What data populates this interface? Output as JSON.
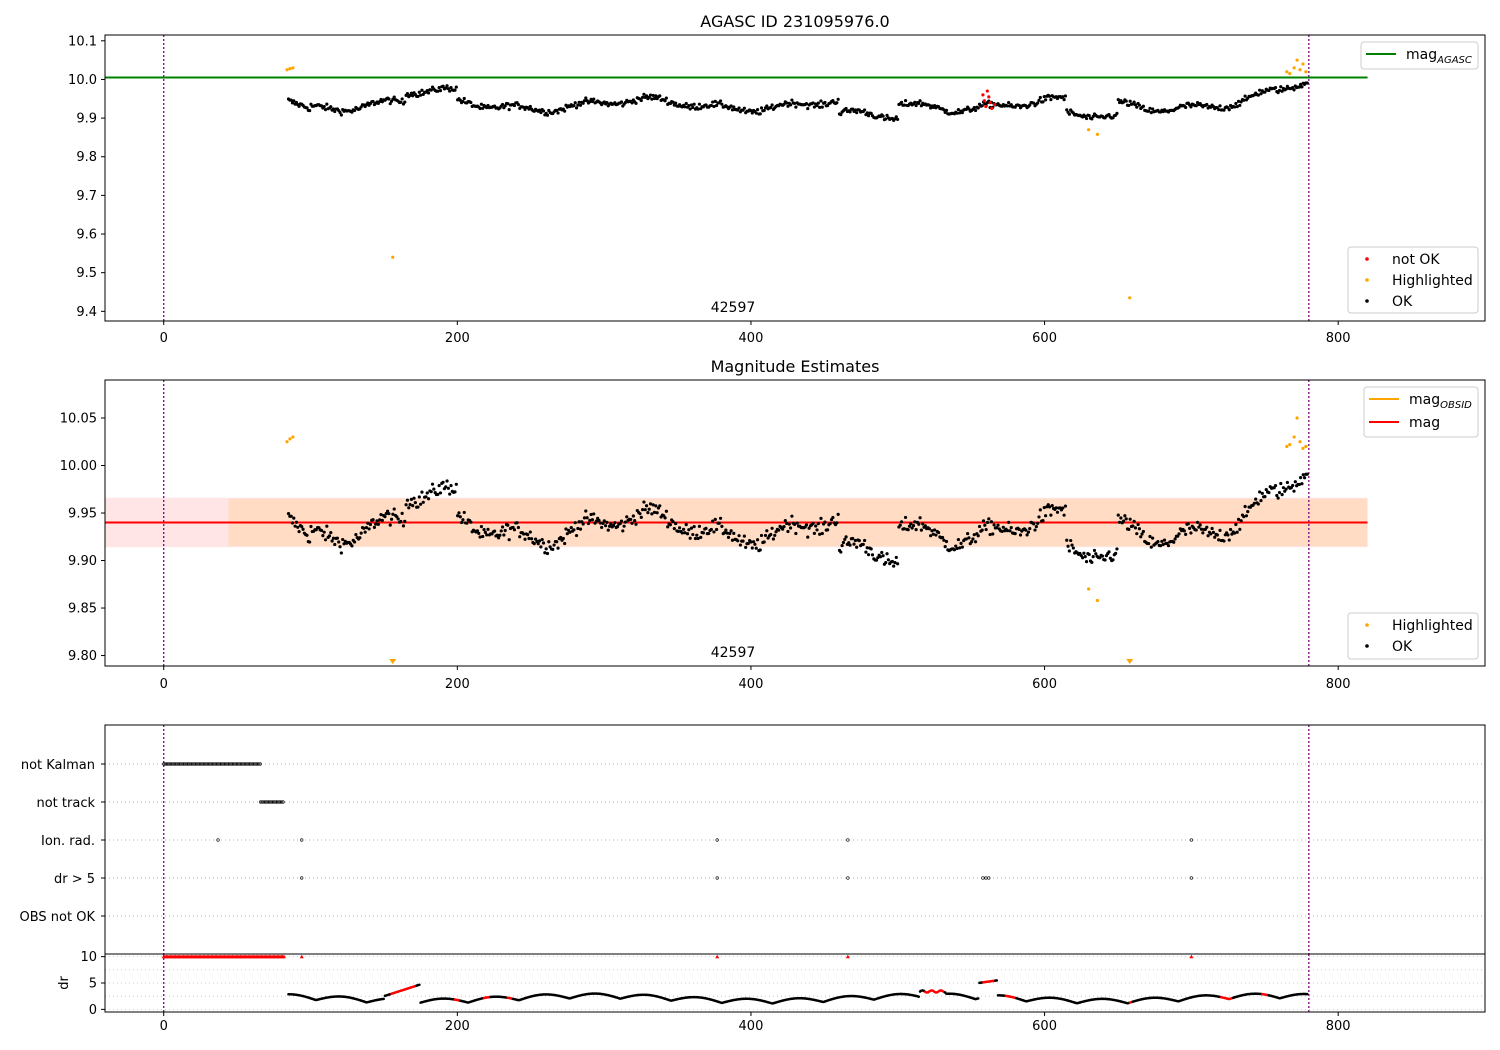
{
  "chart_data": [
    {
      "type": "scatter",
      "title": "AGASC ID 231095976.0",
      "xlim": [
        -40,
        900
      ],
      "ylim": [
        9.375,
        10.115
      ],
      "xticks": [
        0,
        200,
        400,
        600,
        800
      ],
      "yticks": [
        "9.4",
        "9.5",
        "9.6",
        "9.7",
        "9.8",
        "9.9",
        "10.0",
        "10.1"
      ],
      "obsid_label": "42597",
      "obsid_label_x": 390,
      "obsid_bounds": [
        0,
        780
      ],
      "mag_agasc": 10.005,
      "mag_agasc_x_range": [
        -40,
        820
      ],
      "legend_line": {
        "label": "mag",
        "sub": "AGASC",
        "color": "#008000"
      },
      "legend_points": [
        {
          "label": "not OK",
          "color": "#ff0000"
        },
        {
          "label": "Highlighted",
          "color": "#ffa500"
        },
        {
          "label": "OK",
          "color": "#000000"
        }
      ],
      "series": [
        {
          "name": "not OK",
          "color": "#ff0000",
          "points": [
            [
              558,
              9.96
            ],
            [
              559,
              9.945
            ],
            [
              560,
              9.93
            ],
            [
              561,
              9.97
            ],
            [
              562,
              9.955
            ],
            [
              563,
              9.94
            ],
            [
              564,
              9.925
            ],
            [
              566,
              9.935
            ]
          ]
        },
        {
          "name": "Highlighted",
          "color": "#ffa500",
          "points": [
            [
              84,
              10.025
            ],
            [
              86,
              10.028
            ],
            [
              88,
              10.03
            ],
            [
              156,
              9.54
            ],
            [
              630,
              9.87
            ],
            [
              636,
              9.858
            ],
            [
              658,
              9.435
            ],
            [
              765,
              10.02
            ],
            [
              767,
              10.015
            ],
            [
              770,
              10.03
            ],
            [
              772,
              10.05
            ],
            [
              774,
              10.025
            ],
            [
              776,
              10.04
            ],
            [
              778,
              10.02
            ]
          ]
        }
      ]
    },
    {
      "type": "scatter",
      "title": "Magnitude Estimates",
      "xlim": [
        -40,
        900
      ],
      "ylim": [
        9.789,
        10.09
      ],
      "xticks": [
        0,
        200,
        400,
        600,
        800
      ],
      "yticks": [
        "9.80",
        "9.85",
        "9.90",
        "9.95",
        "10.00",
        "10.05"
      ],
      "obsid_label": "42597",
      "obsid_label_x": 390,
      "obsid_bounds": [
        0,
        780
      ],
      "mag_obsid": 9.94,
      "mag_obsid_band": [
        9.915,
        9.965
      ],
      "mag_obsid_x_range": [
        85,
        780
      ],
      "mag": 9.94,
      "mag_band": [
        9.914,
        9.966
      ],
      "mag_x_range": [
        -40,
        820
      ],
      "legend_lines": [
        {
          "label": "mag",
          "sub": "OBSID",
          "color": "#ffa500"
        },
        {
          "label": "mag",
          "sub": "",
          "color": "#ff0000"
        }
      ],
      "legend_points": [
        {
          "label": "Highlighted",
          "color": "#ffa500"
        },
        {
          "label": "OK",
          "color": "#000000"
        }
      ],
      "series": [
        {
          "name": "Highlighted",
          "color": "#ffa500",
          "points": [
            [
              84,
              10.025
            ],
            [
              86,
              10.028
            ],
            [
              88,
              10.03
            ],
            [
              630,
              9.87
            ],
            [
              636,
              9.858
            ],
            [
              765,
              10.02
            ],
            [
              767,
              10.022
            ],
            [
              770,
              10.03
            ],
            [
              772,
              10.05
            ],
            [
              774,
              10.025
            ],
            [
              776,
              10.018
            ],
            [
              778,
              10.02
            ]
          ]
        }
      ],
      "lower_limit_markers": [
        156,
        658
      ]
    },
    {
      "type": "scatter",
      "xlim": [
        -40,
        900
      ],
      "categories": [
        "not Kalman",
        "not track",
        "Ion. rad.",
        "dr > 5",
        "OBS not OK"
      ],
      "flag_points": [
        {
          "category": "not Kalman",
          "x_range": [
            0,
            66
          ]
        },
        {
          "category": "not track",
          "x_range": [
            66,
            82
          ]
        },
        {
          "category": "Ion. rad.",
          "x": [
            37,
            94,
            377,
            466,
            700
          ]
        },
        {
          "category": "dr > 5",
          "x": [
            94,
            377,
            466,
            558,
            560,
            562,
            700
          ]
        }
      ],
      "obsid_bounds": [
        0,
        780
      ]
    },
    {
      "type": "scatter",
      "ylabel": "dr",
      "xlim": [
        -40,
        900
      ],
      "ylim": [
        -0.5,
        10.5
      ],
      "xticks": [
        0,
        200,
        400,
        600,
        800
      ],
      "yticks": [
        "0",
        "5",
        "10"
      ],
      "obsid_bounds": [
        0,
        780
      ],
      "capped_markers": {
        "value": 10,
        "x_range": [
          0,
          82
        ],
        "x": [
          94,
          377,
          466,
          700
        ]
      },
      "red_segments": [
        [
          155,
          172
        ],
        [
          198,
          202
        ],
        [
          218,
          222
        ],
        [
          234,
          238
        ],
        [
          518,
          532
        ],
        [
          558,
          566
        ],
        [
          573,
          580
        ],
        [
          658,
          660
        ],
        [
          720,
          728
        ],
        [
          748,
          752
        ]
      ]
    }
  ]
}
